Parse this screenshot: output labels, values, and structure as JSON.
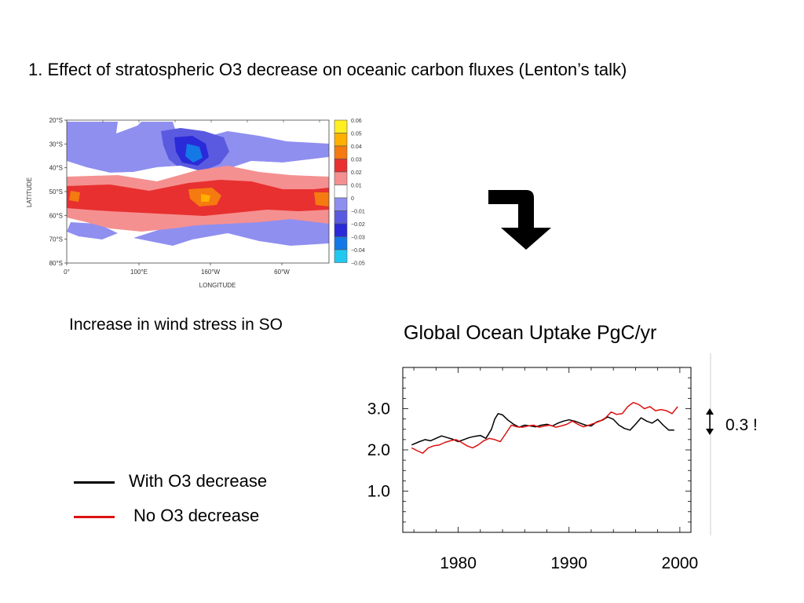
{
  "slide": {
    "title": "1. Effect of stratospheric O3 decrease on oceanic carbon fluxes (Lenton’s talk)",
    "map_caption": "Increase in wind stress in SO",
    "delta_label": "0.3 !",
    "arrow_icon": "down-arrow-icon"
  },
  "legend": [
    {
      "label": "With O3 decrease",
      "color": "#000000"
    },
    {
      "label": "No O3 decrease",
      "color": "#dd1111"
    }
  ],
  "chart_data": [
    {
      "type": "heatmap",
      "title": "",
      "xlabel": "LONGITUDE",
      "ylabel": "LATITUDE",
      "x_ticks": [
        "0°",
        "100°E",
        "160°W",
        "60°W"
      ],
      "y_ticks": [
        "20°S",
        "30°S",
        "40°S",
        "50°S",
        "60°S",
        "70°S",
        "80°S"
      ],
      "colorbar": {
        "labels": [
          "0.06",
          "0.05",
          "0.04",
          "0.03",
          "0.02",
          "0.01",
          "0",
          "−0.01",
          "−0.02",
          "−0.03",
          "−0.04",
          "−0.05"
        ],
        "colors": [
          "#ffee22",
          "#ffb000",
          "#f57a10",
          "#e83030",
          "#f59090",
          "#ffffff",
          "#8f8ff0",
          "#5a5ae0",
          "#2a2ad8",
          "#1478e6",
          "#22c8f0"
        ]
      }
    },
    {
      "type": "line",
      "title": "Global Ocean Uptake PgC/yr",
      "xlabel": "",
      "ylabel": "",
      "x_ticks": [
        1980,
        1990,
        2000
      ],
      "y_ticks": [
        "1.0",
        "2.0",
        "3.0"
      ],
      "xlim": [
        1975,
        2001
      ],
      "ylim": [
        0,
        4
      ],
      "grid": false,
      "series": [
        {
          "name": "With O3 decrease",
          "color": "#000000",
          "x": [
            1975.8,
            1976.5,
            1977,
            1977.5,
            1978,
            1978.5,
            1979,
            1979.5,
            1980,
            1980.5,
            1981,
            1981.5,
            1982,
            1982.5,
            1983,
            1983.3,
            1983.6,
            1984,
            1984.5,
            1985,
            1985.5,
            1986,
            1986.5,
            1987,
            1987.5,
            1988,
            1988.5,
            1989,
            1989.5,
            1990,
            1990.5,
            1991,
            1991.5,
            1992,
            1992.5,
            1993,
            1993.5,
            1994,
            1994.5,
            1995,
            1995.5,
            1996,
            1996.5,
            1997,
            1997.5,
            1998,
            1998.5,
            1999,
            1999.5
          ],
          "y": [
            2.12,
            2.2,
            2.25,
            2.22,
            2.28,
            2.34,
            2.3,
            2.26,
            2.2,
            2.25,
            2.3,
            2.33,
            2.35,
            2.28,
            2.5,
            2.75,
            2.88,
            2.85,
            2.72,
            2.62,
            2.55,
            2.6,
            2.58,
            2.56,
            2.6,
            2.62,
            2.58,
            2.65,
            2.7,
            2.73,
            2.7,
            2.65,
            2.6,
            2.58,
            2.68,
            2.72,
            2.8,
            2.74,
            2.6,
            2.52,
            2.48,
            2.62,
            2.78,
            2.7,
            2.65,
            2.74,
            2.6,
            2.48,
            2.48
          ]
        },
        {
          "name": "No O3 decrease",
          "color": "#dd1111",
          "x": [
            1975.8,
            1976.3,
            1976.8,
            1977.3,
            1977.8,
            1978.3,
            1978.8,
            1979.3,
            1979.8,
            1980.3,
            1980.8,
            1981.3,
            1981.8,
            1982.3,
            1982.8,
            1983.3,
            1983.8,
            1984.3,
            1984.8,
            1985.3,
            1985.8,
            1986.3,
            1986.8,
            1987.3,
            1987.8,
            1988.3,
            1988.8,
            1989.3,
            1989.8,
            1990.3,
            1990.8,
            1991.3,
            1991.8,
            1992.3,
            1992.8,
            1993.3,
            1993.8,
            1994.3,
            1994.8,
            1995.3,
            1995.8,
            1996.3,
            1996.8,
            1997.3,
            1997.8,
            1998.3,
            1998.8,
            1999.3,
            1999.8
          ],
          "y": [
            2.05,
            1.98,
            1.92,
            2.05,
            2.1,
            2.12,
            2.18,
            2.22,
            2.25,
            2.18,
            2.1,
            2.05,
            2.12,
            2.22,
            2.28,
            2.25,
            2.2,
            2.4,
            2.6,
            2.56,
            2.55,
            2.58,
            2.6,
            2.55,
            2.58,
            2.6,
            2.55,
            2.58,
            2.62,
            2.7,
            2.62,
            2.56,
            2.6,
            2.65,
            2.7,
            2.78,
            2.92,
            2.86,
            2.88,
            3.05,
            3.15,
            3.1,
            3.0,
            3.05,
            2.95,
            2.98,
            2.95,
            2.88,
            3.05
          ]
        }
      ]
    }
  ]
}
